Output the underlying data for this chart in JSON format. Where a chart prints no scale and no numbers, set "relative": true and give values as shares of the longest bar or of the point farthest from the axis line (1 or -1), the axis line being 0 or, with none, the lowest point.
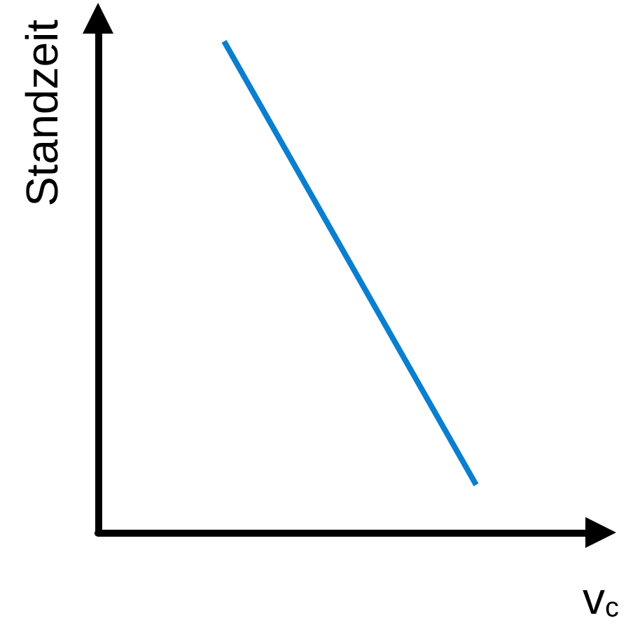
{
  "chart_data": {
    "type": "line",
    "xlabel": "v$_{c}$",
    "ylabel": "Standzeit",
    "relative": true,
    "categories": [
      null,
      null
    ],
    "grid": false,
    "marker": "none",
    "line_style": "solid",
    "series": [
      {
        "color": "#0a7fcf",
        "values": [
          1,
          0.097
        ]
      }
    ]
  }
}
